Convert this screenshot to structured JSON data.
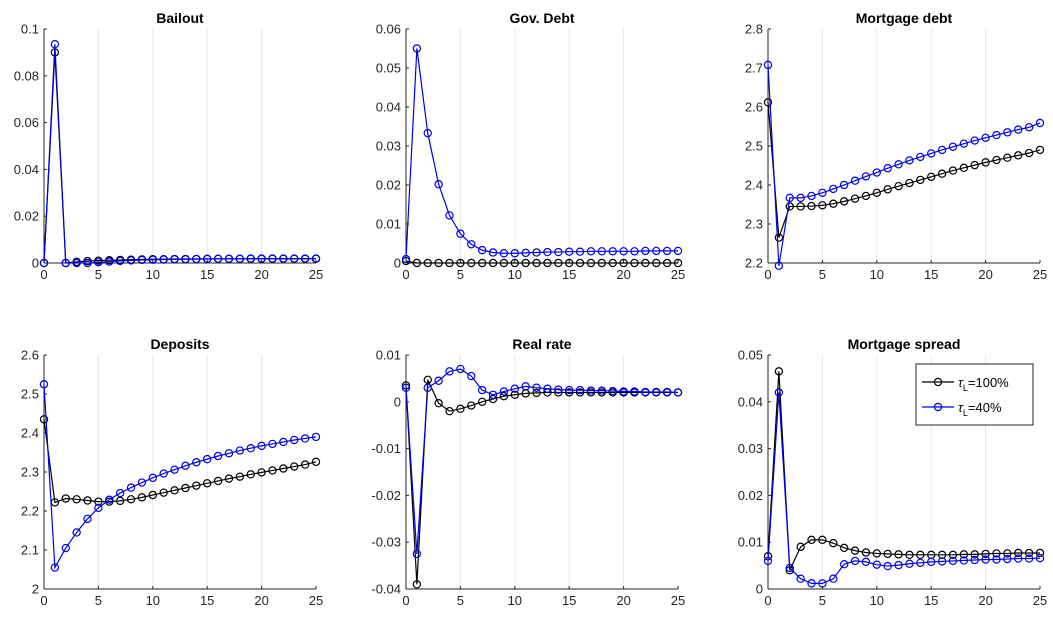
{
  "legend": {
    "placement": "top-right of Mortgage spread panel",
    "entries": [
      "τL=100%",
      "τL=40%"
    ]
  },
  "colors": {
    "tau100": "#000000",
    "tau40": "#0000ee",
    "grid": "#e6e6e6",
    "axis": "#262626"
  },
  "chart_data": [
    {
      "type": "line",
      "title": "Bailout",
      "xlim": [
        0,
        25
      ],
      "ylim": [
        0,
        0.1
      ],
      "xticks": [
        "0",
        "5",
        "10",
        "15",
        "20",
        "25"
      ],
      "yticks": [
        "0",
        "0.02",
        "0.04",
        "0.06",
        "0.08",
        "0.1"
      ],
      "grid": "vertical",
      "x": [
        0,
        1,
        2,
        3,
        4,
        5,
        6,
        7,
        8,
        9,
        10,
        11,
        12,
        13,
        14,
        15,
        16,
        17,
        18,
        19,
        20,
        21,
        22,
        23,
        24,
        25
      ],
      "series": [
        {
          "name": "τL=100%",
          "values": [
            0,
            0.09,
            0,
            0.0005,
            0.0008,
            0.001,
            0.0012,
            0.0013,
            0.0014,
            0.0015,
            0.0016,
            0.0016,
            0.0017,
            0.0017,
            0.0017,
            0.0018,
            0.0018,
            0.0018,
            0.0018,
            0.0018,
            0.0018,
            0.0018,
            0.0018,
            0.0018,
            0.0018,
            0.0018
          ]
        },
        {
          "name": "τL=40%",
          "values": [
            0,
            0.0935,
            0,
            0,
            0,
            0.0003,
            0.0006,
            0.0009,
            0.0011,
            0.0013,
            0.0014,
            0.0015,
            0.0016,
            0.0016,
            0.0017,
            0.0017,
            0.0018,
            0.0018,
            0.0018,
            0.0019,
            0.0019,
            0.0019,
            0.0019,
            0.0019,
            0.0019,
            0.0019
          ]
        }
      ]
    },
    {
      "type": "line",
      "title": "Gov. Debt",
      "xlim": [
        0,
        25
      ],
      "ylim": [
        0,
        0.06
      ],
      "xticks": [
        "0",
        "5",
        "10",
        "15",
        "20",
        "25"
      ],
      "yticks": [
        "0",
        "0.01",
        "0.02",
        "0.03",
        "0.04",
        "0.05",
        "0.06"
      ],
      "grid": "vertical",
      "x": [
        0,
        1,
        2,
        3,
        4,
        5,
        6,
        7,
        8,
        9,
        10,
        11,
        12,
        13,
        14,
        15,
        16,
        17,
        18,
        19,
        20,
        21,
        22,
        23,
        24,
        25
      ],
      "series": [
        {
          "name": "τL=100%",
          "values": [
            0.0005,
            0,
            0,
            0,
            0,
            0,
            0,
            0,
            0,
            0,
            0,
            0,
            0,
            0,
            0,
            0,
            0,
            0,
            0,
            0,
            0,
            0,
            0,
            0,
            0,
            0
          ]
        },
        {
          "name": "τL=40%",
          "values": [
            0.001,
            0.055,
            0.0333,
            0.0202,
            0.0122,
            0.0075,
            0.0048,
            0.0033,
            0.0027,
            0.0025,
            0.0025,
            0.0026,
            0.0027,
            0.0028,
            0.0028,
            0.0029,
            0.0029,
            0.003,
            0.003,
            0.003,
            0.003,
            0.003,
            0.0031,
            0.0031,
            0.0031,
            0.0031
          ]
        }
      ]
    },
    {
      "type": "line",
      "title": "Mortgage debt",
      "xlim": [
        0,
        25
      ],
      "ylim": [
        2.2,
        2.8
      ],
      "xticks": [
        "0",
        "5",
        "10",
        "15",
        "20",
        "25"
      ],
      "yticks": [
        "2.2",
        "2.3",
        "2.4",
        "2.5",
        "2.6",
        "2.7",
        "2.8"
      ],
      "grid": "vertical",
      "x": [
        0,
        1,
        2,
        3,
        4,
        5,
        6,
        7,
        8,
        9,
        10,
        11,
        12,
        13,
        14,
        15,
        16,
        17,
        18,
        19,
        20,
        21,
        22,
        23,
        24,
        25
      ],
      "series": [
        {
          "name": "τL=100%",
          "values": [
            2.612,
            2.265,
            2.345,
            2.345,
            2.346,
            2.348,
            2.352,
            2.358,
            2.365,
            2.372,
            2.38,
            2.389,
            2.397,
            2.405,
            2.413,
            2.421,
            2.429,
            2.437,
            2.444,
            2.451,
            2.458,
            2.464,
            2.47,
            2.476,
            2.482,
            2.49
          ]
        },
        {
          "name": "τL=40%",
          "values": [
            2.708,
            2.193,
            2.367,
            2.367,
            2.372,
            2.38,
            2.39,
            2.4,
            2.411,
            2.422,
            2.432,
            2.443,
            2.453,
            2.463,
            2.472,
            2.481,
            2.49,
            2.498,
            2.506,
            2.514,
            2.521,
            2.528,
            2.535,
            2.542,
            2.548,
            2.559
          ]
        }
      ]
    },
    {
      "type": "line",
      "title": "Deposits",
      "xlim": [
        0,
        25
      ],
      "ylim": [
        2,
        2.6
      ],
      "xticks": [
        "0",
        "5",
        "10",
        "15",
        "20",
        "25"
      ],
      "yticks": [
        "2",
        "2.1",
        "2.2",
        "2.3",
        "2.4",
        "2.5",
        "2.6"
      ],
      "grid": "vertical",
      "x": [
        0,
        1,
        2,
        3,
        4,
        5,
        6,
        7,
        8,
        9,
        10,
        11,
        12,
        13,
        14,
        15,
        16,
        17,
        18,
        19,
        20,
        21,
        22,
        23,
        24,
        25
      ],
      "series": [
        {
          "name": "τL=100%",
          "values": [
            2.435,
            2.222,
            2.232,
            2.23,
            2.227,
            2.224,
            2.224,
            2.226,
            2.23,
            2.235,
            2.241,
            2.247,
            2.253,
            2.259,
            2.265,
            2.271,
            2.277,
            2.283,
            2.288,
            2.294,
            2.299,
            2.304,
            2.309,
            2.314,
            2.319,
            2.326
          ]
        },
        {
          "name": "τL=40%",
          "values": [
            2.525,
            2.055,
            2.105,
            2.145,
            2.18,
            2.208,
            2.229,
            2.246,
            2.26,
            2.273,
            2.285,
            2.296,
            2.306,
            2.316,
            2.325,
            2.333,
            2.341,
            2.348,
            2.355,
            2.361,
            2.367,
            2.372,
            2.377,
            2.382,
            2.386,
            2.39
          ]
        }
      ]
    },
    {
      "type": "line",
      "title": "Real rate",
      "xlim": [
        0,
        25
      ],
      "ylim": [
        -0.04,
        0.01
      ],
      "xticks": [
        "0",
        "5",
        "10",
        "15",
        "20",
        "25"
      ],
      "yticks": [
        "-0.04",
        "-0.03",
        "-0.02",
        "-0.01",
        "0",
        "0.01"
      ],
      "grid": "vertical",
      "x": [
        0,
        1,
        2,
        3,
        4,
        5,
        6,
        7,
        8,
        9,
        10,
        11,
        12,
        13,
        14,
        15,
        16,
        17,
        18,
        19,
        20,
        21,
        22,
        23,
        24,
        25
      ],
      "series": [
        {
          "name": "τL=100%",
          "values": [
            0.0035,
            -0.039,
            0.0047,
            -0.0003,
            -0.002,
            -0.0015,
            -0.0008,
            0,
            0.0006,
            0.0012,
            0.0015,
            0.0018,
            0.0019,
            0.002,
            0.002,
            0.002,
            0.002,
            0.002,
            0.002,
            0.002,
            0.002,
            0.002,
            0.002,
            0.002,
            0.002,
            0.002
          ]
        },
        {
          "name": "τL=40%",
          "values": [
            0.003,
            -0.0325,
            0.003,
            0.0045,
            0.0065,
            0.007,
            0.0055,
            0.0025,
            0.0015,
            0.0022,
            0.0028,
            0.0033,
            0.003,
            0.0028,
            0.0026,
            0.0025,
            0.0025,
            0.0024,
            0.0024,
            0.0023,
            0.0022,
            0.0022,
            0.0021,
            0.0021,
            0.0021,
            0.002
          ]
        }
      ]
    },
    {
      "type": "line",
      "title": "Mortgage spread",
      "xlim": [
        0,
        25
      ],
      "ylim": [
        0,
        0.05
      ],
      "xticks": [
        "0",
        "5",
        "10",
        "15",
        "20",
        "25"
      ],
      "yticks": [
        "0",
        "0.01",
        "0.02",
        "0.03",
        "0.04",
        "0.05"
      ],
      "grid": "vertical",
      "x": [
        0,
        1,
        2,
        3,
        4,
        5,
        6,
        7,
        8,
        9,
        10,
        11,
        12,
        13,
        14,
        15,
        16,
        17,
        18,
        19,
        20,
        21,
        22,
        23,
        24,
        25
      ],
      "series": [
        {
          "name": "τL=100%",
          "values": [
            0.007,
            0.0465,
            0.004,
            0.009,
            0.0105,
            0.0105,
            0.0098,
            0.0088,
            0.0082,
            0.0078,
            0.0076,
            0.0075,
            0.0074,
            0.0073,
            0.0073,
            0.0073,
            0.0073,
            0.0073,
            0.0074,
            0.0074,
            0.0075,
            0.0076,
            0.0076,
            0.0077,
            0.0077,
            0.0077
          ]
        },
        {
          "name": "τL=40%",
          "values": [
            0.006,
            0.042,
            0.0045,
            0.0022,
            0.0012,
            0.0012,
            0.0022,
            0.0053,
            0.006,
            0.0058,
            0.0052,
            0.0049,
            0.0051,
            0.0054,
            0.0056,
            0.0058,
            0.0059,
            0.006,
            0.0061,
            0.0062,
            0.0063,
            0.0063,
            0.0064,
            0.0065,
            0.0065,
            0.0066
          ]
        }
      ]
    }
  ]
}
